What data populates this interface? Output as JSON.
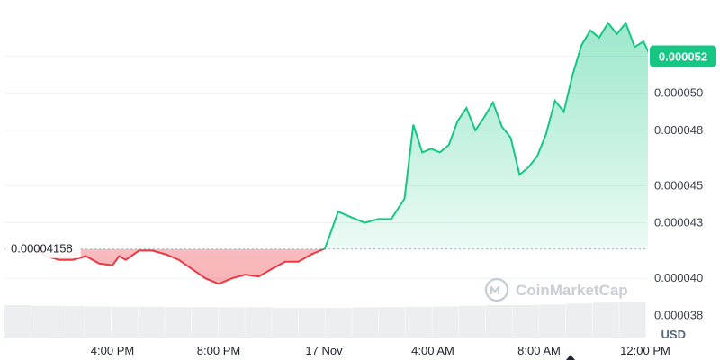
{
  "chart_data": {
    "type": "line",
    "x_unit": "time",
    "x_ticks": [
      "4:00 PM",
      "8:00 PM",
      "17 Nov",
      "4:00 AM",
      "8:00 AM",
      "12:00 PM"
    ],
    "y_ticks": [
      "0.000038",
      "0.000040",
      "0.000043",
      "0.000045",
      "0.000048",
      "0.000050"
    ],
    "ylim": [
      3.68e-05,
      5.48e-05
    ],
    "currency": "USD",
    "reference_value": 4.158e-05,
    "reference_label": "0.00004158",
    "current_value": 5.2e-05,
    "current_label": "0.000052",
    "watermark": "CoinMarketCap",
    "grid": true,
    "colors": {
      "up": "#16c784",
      "down": "#ea3943",
      "reference": "#a6b0c3"
    },
    "series": [
      {
        "x": [
          "13:00",
          "13:30",
          "14:00",
          "14:30",
          "15:00",
          "15:30",
          "16:00",
          "16:15",
          "16:30",
          "17:00",
          "17:30",
          "18:00",
          "18:30",
          "19:00",
          "19:30",
          "20:00",
          "20:30",
          "21:00",
          "21:30",
          "22:00",
          "22:30",
          "23:00",
          "23:30",
          "00:00",
          "00:15",
          "00:30",
          "01:00",
          "01:30",
          "02:00",
          "02:30",
          "03:00",
          "03:20",
          "03:40",
          "04:00",
          "04:20",
          "04:40",
          "05:00",
          "05:20",
          "05:40",
          "06:00",
          "06:20",
          "06:40",
          "07:00",
          "07:20",
          "07:40",
          "08:00",
          "08:20",
          "08:40",
          "09:00",
          "09:20",
          "09:40",
          "10:00",
          "10:20",
          "10:40",
          "11:00",
          "11:20",
          "11:40",
          "12:00",
          "12:20"
        ],
        "y": [
          4.16e-05,
          4.12e-05,
          4.1e-05,
          4.1e-05,
          4.12e-05,
          4.08e-05,
          4.07e-05,
          4.12e-05,
          4.1e-05,
          4.15e-05,
          4.15e-05,
          4.13e-05,
          4.1e-05,
          4.05e-05,
          4e-05,
          3.97e-05,
          4e-05,
          4.02e-05,
          4.01e-05,
          4.05e-05,
          4.09e-05,
          4.09e-05,
          4.13e-05,
          4.16e-05,
          4.26e-05,
          4.36e-05,
          4.33e-05,
          4.3e-05,
          4.32e-05,
          4.32e-05,
          4.43e-05,
          4.83e-05,
          4.68e-05,
          4.7e-05,
          4.68e-05,
          4.72e-05,
          4.85e-05,
          4.92e-05,
          4.8e-05,
          4.87e-05,
          4.95e-05,
          4.82e-05,
          4.76e-05,
          4.56e-05,
          4.6e-05,
          4.66e-05,
          4.78e-05,
          4.96e-05,
          4.9e-05,
          5.1e-05,
          5.26e-05,
          5.34e-05,
          5.3e-05,
          5.38e-05,
          5.32e-05,
          5.38e-05,
          5.25e-05,
          5.28e-05,
          5.18e-05
        ]
      }
    ],
    "volume": [
      1.0,
      0.98,
      0.97,
      0.96,
      0.95,
      0.95,
      0.94,
      0.94,
      0.93,
      0.93,
      0.92,
      0.92,
      0.92,
      0.93,
      0.94,
      0.95,
      0.96,
      0.98,
      1.0,
      1.0,
      1.02,
      1.05,
      1.08,
      1.1
    ]
  }
}
